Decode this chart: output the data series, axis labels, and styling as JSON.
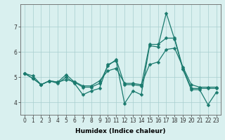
{
  "xlabel": "Humidex (Indice chaleur)",
  "x": [
    0,
    1,
    2,
    3,
    4,
    5,
    6,
    7,
    8,
    9,
    10,
    11,
    12,
    13,
    14,
    15,
    16,
    17,
    18,
    19,
    20,
    21,
    22,
    23
  ],
  "series": [
    [
      5.15,
      4.95,
      4.7,
      4.85,
      4.75,
      5.0,
      4.75,
      4.3,
      4.45,
      4.55,
      5.5,
      5.65,
      3.95,
      4.45,
      4.3,
      6.25,
      6.2,
      7.55,
      6.5,
      5.3,
      4.5,
      4.5,
      3.9,
      4.4
    ],
    [
      5.15,
      5.05,
      4.7,
      4.85,
      4.8,
      4.9,
      4.82,
      4.65,
      4.65,
      4.85,
      5.25,
      5.35,
      4.75,
      4.75,
      4.7,
      5.5,
      5.6,
      6.1,
      6.15,
      5.4,
      4.7,
      4.6,
      4.6,
      4.6
    ],
    [
      5.15,
      4.95,
      4.7,
      4.85,
      4.8,
      5.1,
      4.8,
      4.6,
      4.6,
      4.75,
      5.45,
      5.7,
      4.7,
      4.7,
      4.65,
      6.3,
      6.3,
      6.55,
      6.55,
      5.35,
      4.55,
      4.55,
      4.55,
      4.55
    ]
  ],
  "line_color": "#1a7a6e",
  "markersize": 2.5,
  "linewidth": 0.9,
  "background_color": "#d9f0ef",
  "grid_color": "#a8cece",
  "xlim": [
    -0.5,
    23.5
  ],
  "ylim": [
    3.5,
    7.9
  ],
  "yticks": [
    4,
    5,
    6,
    7
  ],
  "xticks": [
    0,
    1,
    2,
    3,
    4,
    5,
    6,
    7,
    8,
    9,
    10,
    11,
    12,
    13,
    14,
    15,
    16,
    17,
    18,
    19,
    20,
    21,
    22,
    23
  ],
  "tick_fontsize": 5.5,
  "xlabel_fontsize": 6.5
}
